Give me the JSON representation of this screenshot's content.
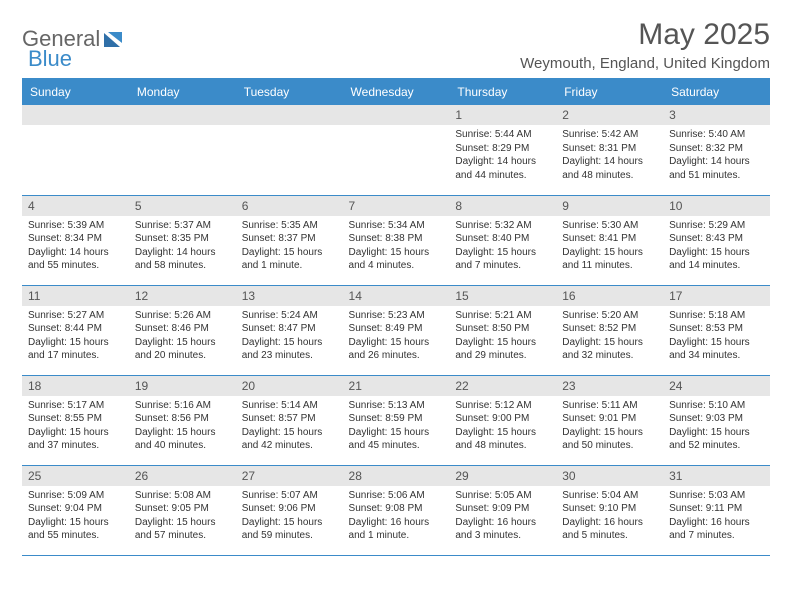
{
  "brand": {
    "part1": "General",
    "part2": "Blue"
  },
  "title": "May 2025",
  "location": "Weymouth, England, United Kingdom",
  "colors": {
    "accent": "#3b8bc9",
    "header_row": "#e6e6e6",
    "text": "#333333",
    "title_text": "#555555"
  },
  "weekdays": [
    "Sunday",
    "Monday",
    "Tuesday",
    "Wednesday",
    "Thursday",
    "Friday",
    "Saturday"
  ],
  "weeks": [
    [
      null,
      null,
      null,
      null,
      {
        "n": "1",
        "sunrise": "5:44 AM",
        "sunset": "8:29 PM",
        "daylight": "14 hours and 44 minutes."
      },
      {
        "n": "2",
        "sunrise": "5:42 AM",
        "sunset": "8:31 PM",
        "daylight": "14 hours and 48 minutes."
      },
      {
        "n": "3",
        "sunrise": "5:40 AM",
        "sunset": "8:32 PM",
        "daylight": "14 hours and 51 minutes."
      }
    ],
    [
      {
        "n": "4",
        "sunrise": "5:39 AM",
        "sunset": "8:34 PM",
        "daylight": "14 hours and 55 minutes."
      },
      {
        "n": "5",
        "sunrise": "5:37 AM",
        "sunset": "8:35 PM",
        "daylight": "14 hours and 58 minutes."
      },
      {
        "n": "6",
        "sunrise": "5:35 AM",
        "sunset": "8:37 PM",
        "daylight": "15 hours and 1 minute."
      },
      {
        "n": "7",
        "sunrise": "5:34 AM",
        "sunset": "8:38 PM",
        "daylight": "15 hours and 4 minutes."
      },
      {
        "n": "8",
        "sunrise": "5:32 AM",
        "sunset": "8:40 PM",
        "daylight": "15 hours and 7 minutes."
      },
      {
        "n": "9",
        "sunrise": "5:30 AM",
        "sunset": "8:41 PM",
        "daylight": "15 hours and 11 minutes."
      },
      {
        "n": "10",
        "sunrise": "5:29 AM",
        "sunset": "8:43 PM",
        "daylight": "15 hours and 14 minutes."
      }
    ],
    [
      {
        "n": "11",
        "sunrise": "5:27 AM",
        "sunset": "8:44 PM",
        "daylight": "15 hours and 17 minutes."
      },
      {
        "n": "12",
        "sunrise": "5:26 AM",
        "sunset": "8:46 PM",
        "daylight": "15 hours and 20 minutes."
      },
      {
        "n": "13",
        "sunrise": "5:24 AM",
        "sunset": "8:47 PM",
        "daylight": "15 hours and 23 minutes."
      },
      {
        "n": "14",
        "sunrise": "5:23 AM",
        "sunset": "8:49 PM",
        "daylight": "15 hours and 26 minutes."
      },
      {
        "n": "15",
        "sunrise": "5:21 AM",
        "sunset": "8:50 PM",
        "daylight": "15 hours and 29 minutes."
      },
      {
        "n": "16",
        "sunrise": "5:20 AM",
        "sunset": "8:52 PM",
        "daylight": "15 hours and 32 minutes."
      },
      {
        "n": "17",
        "sunrise": "5:18 AM",
        "sunset": "8:53 PM",
        "daylight": "15 hours and 34 minutes."
      }
    ],
    [
      {
        "n": "18",
        "sunrise": "5:17 AM",
        "sunset": "8:55 PM",
        "daylight": "15 hours and 37 minutes."
      },
      {
        "n": "19",
        "sunrise": "5:16 AM",
        "sunset": "8:56 PM",
        "daylight": "15 hours and 40 minutes."
      },
      {
        "n": "20",
        "sunrise": "5:14 AM",
        "sunset": "8:57 PM",
        "daylight": "15 hours and 42 minutes."
      },
      {
        "n": "21",
        "sunrise": "5:13 AM",
        "sunset": "8:59 PM",
        "daylight": "15 hours and 45 minutes."
      },
      {
        "n": "22",
        "sunrise": "5:12 AM",
        "sunset": "9:00 PM",
        "daylight": "15 hours and 48 minutes."
      },
      {
        "n": "23",
        "sunrise": "5:11 AM",
        "sunset": "9:01 PM",
        "daylight": "15 hours and 50 minutes."
      },
      {
        "n": "24",
        "sunrise": "5:10 AM",
        "sunset": "9:03 PM",
        "daylight": "15 hours and 52 minutes."
      }
    ],
    [
      {
        "n": "25",
        "sunrise": "5:09 AM",
        "sunset": "9:04 PM",
        "daylight": "15 hours and 55 minutes."
      },
      {
        "n": "26",
        "sunrise": "5:08 AM",
        "sunset": "9:05 PM",
        "daylight": "15 hours and 57 minutes."
      },
      {
        "n": "27",
        "sunrise": "5:07 AM",
        "sunset": "9:06 PM",
        "daylight": "15 hours and 59 minutes."
      },
      {
        "n": "28",
        "sunrise": "5:06 AM",
        "sunset": "9:08 PM",
        "daylight": "16 hours and 1 minute."
      },
      {
        "n": "29",
        "sunrise": "5:05 AM",
        "sunset": "9:09 PM",
        "daylight": "16 hours and 3 minutes."
      },
      {
        "n": "30",
        "sunrise": "5:04 AM",
        "sunset": "9:10 PM",
        "daylight": "16 hours and 5 minutes."
      },
      {
        "n": "31",
        "sunrise": "5:03 AM",
        "sunset": "9:11 PM",
        "daylight": "16 hours and 7 minutes."
      }
    ]
  ],
  "labels": {
    "sunrise": "Sunrise:",
    "sunset": "Sunset:",
    "daylight": "Daylight:"
  }
}
